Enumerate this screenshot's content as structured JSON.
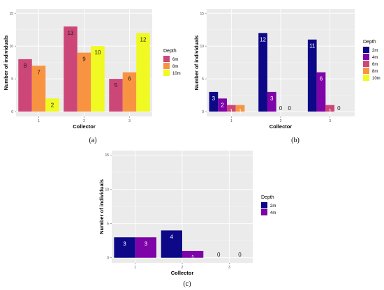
{
  "chart_data": [
    {
      "type": "bar",
      "caption": "(a)",
      "xlabel": "Collector",
      "ylabel": "Number of individuals",
      "categories": [
        "1",
        "2",
        "3"
      ],
      "ylim": [
        0,
        15
      ],
      "yticks": [
        0,
        5,
        10,
        15
      ],
      "legend_title": "Depth",
      "legend_position": "right",
      "series": [
        {
          "name": "6m",
          "color": "#CC4778",
          "values": [
            8,
            13,
            5
          ]
        },
        {
          "name": "8m",
          "color": "#F89441",
          "values": [
            7,
            9,
            6
          ]
        },
        {
          "name": "10m",
          "color": "#F0F921",
          "values": [
            2,
            10,
            12
          ]
        }
      ],
      "label_color": "#1a1a1a",
      "grid": true
    },
    {
      "type": "bar",
      "caption": "(b)",
      "xlabel": "Collector",
      "ylabel": "Number of individuals",
      "categories": [
        "1",
        "2",
        "3"
      ],
      "ylim": [
        0,
        15
      ],
      "yticks": [
        0,
        5,
        10,
        15
      ],
      "legend_title": "Depth",
      "legend_position": "right",
      "series": [
        {
          "name": "2m",
          "color": "#0D0887",
          "values": [
            3,
            12,
            11
          ]
        },
        {
          "name": "4m",
          "color": "#7E03A8",
          "values": [
            2,
            3,
            6
          ]
        },
        {
          "name": "6m",
          "color": "#CC4778",
          "values": [
            1,
            0,
            1
          ]
        },
        {
          "name": "8m",
          "color": "#F89441",
          "values": [
            1,
            0,
            0
          ]
        },
        {
          "name": "10m",
          "color": "#F0F921",
          "values": [
            null,
            null,
            null
          ]
        }
      ],
      "label_color": "#ffffff",
      "grid": true
    },
    {
      "type": "bar",
      "caption": "(c)",
      "xlabel": "Collector",
      "ylabel": "Number of individuals",
      "categories": [
        "1",
        "2",
        "3"
      ],
      "ylim": [
        0,
        15
      ],
      "yticks": [
        0,
        5,
        10,
        15
      ],
      "legend_title": "Depth",
      "legend_position": "right",
      "series": [
        {
          "name": "2m",
          "color": "#0D0887",
          "values": [
            3,
            4,
            0
          ]
        },
        {
          "name": "4m",
          "color": "#7E03A8",
          "values": [
            3,
            1,
            0
          ]
        }
      ],
      "label_color": "#ffffff",
      "grid": true
    }
  ]
}
